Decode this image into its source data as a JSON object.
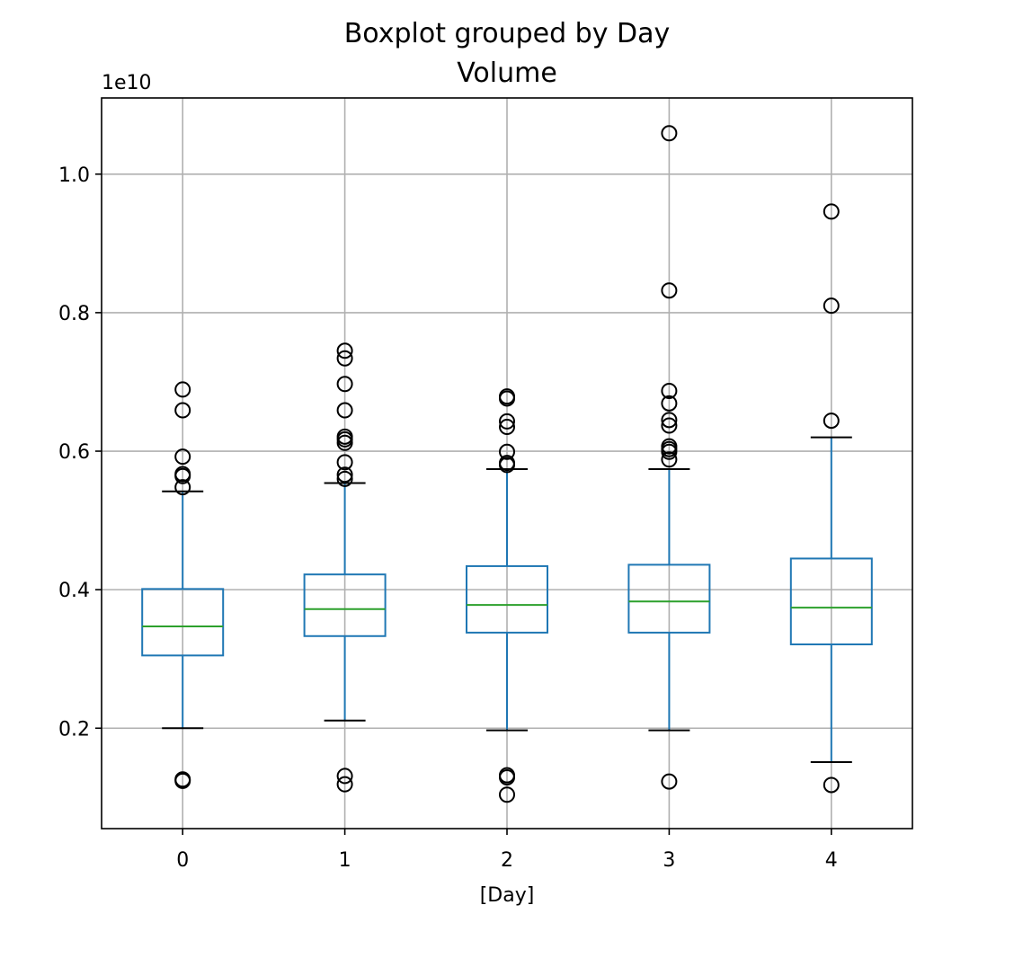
{
  "chart_data": {
    "type": "box",
    "title": "Boxplot grouped by Day",
    "subtitle": "Volume",
    "xlabel": "[Day]",
    "ylabel": "",
    "y_offset_label": "1e10",
    "ylim": [
      0.055,
      1.11
    ],
    "yticks": [
      0.2,
      0.4,
      0.6,
      0.8,
      1.0
    ],
    "ytick_labels": [
      "0.2",
      "0.4",
      "0.6",
      "0.8",
      "1.0"
    ],
    "grid": true,
    "categories": [
      "0",
      "1",
      "2",
      "3",
      "4"
    ],
    "boxes": [
      {
        "category": "0",
        "whisker_low": 0.2,
        "q1": 0.305,
        "median": 0.347,
        "q3": 0.401,
        "whisker_high": 0.542,
        "outliers": [
          0.689,
          0.659,
          0.592,
          0.567,
          0.564,
          0.548,
          0.126,
          0.124
        ]
      },
      {
        "category": "1",
        "whisker_low": 0.211,
        "q1": 0.333,
        "median": 0.372,
        "q3": 0.422,
        "whisker_high": 0.554,
        "outliers": [
          0.745,
          0.734,
          0.697,
          0.659,
          0.621,
          0.617,
          0.612,
          0.584,
          0.566,
          0.56,
          0.131,
          0.119
        ]
      },
      {
        "category": "2",
        "whisker_low": 0.197,
        "q1": 0.338,
        "median": 0.378,
        "q3": 0.434,
        "whisker_high": 0.574,
        "outliers": [
          0.679,
          0.676,
          0.643,
          0.635,
          0.599,
          0.583,
          0.58,
          0.132,
          0.129,
          0.104
        ]
      },
      {
        "category": "3",
        "whisker_low": 0.197,
        "q1": 0.338,
        "median": 0.383,
        "q3": 0.436,
        "whisker_high": 0.574,
        "outliers": [
          1.059,
          0.832,
          0.687,
          0.669,
          0.645,
          0.637,
          0.607,
          0.603,
          0.599,
          0.588,
          0.123
        ]
      },
      {
        "category": "4",
        "whisker_low": 0.151,
        "q1": 0.321,
        "median": 0.374,
        "q3": 0.445,
        "whisker_high": 0.62,
        "outliers": [
          0.946,
          0.81,
          0.644,
          0.118
        ]
      }
    ]
  },
  "colors": {
    "box": "#1f77b4",
    "median": "#2ca02c",
    "cap": "#000000",
    "flier": "#000000",
    "grid": "#b0b0b0",
    "frame": "#000000"
  }
}
